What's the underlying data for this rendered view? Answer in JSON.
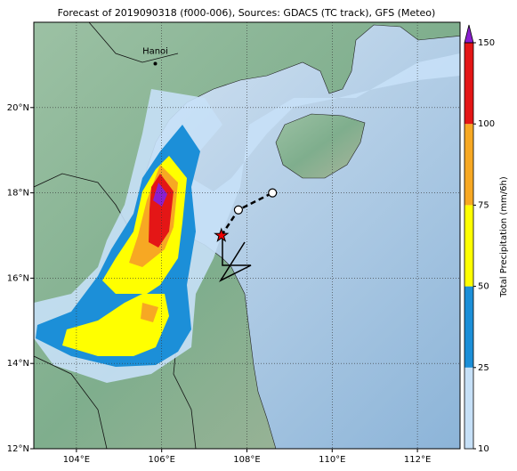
{
  "title": "Forecast of 2019090318 (f000-006), Sources: GDACS (TC track), GFS (Meteo)",
  "map": {
    "xlim": [
      103,
      113
    ],
    "ylim": [
      12,
      22
    ],
    "xticks": [
      {
        "value": 104,
        "label": "104°E"
      },
      {
        "value": 106,
        "label": "106°E"
      },
      {
        "value": 108,
        "label": "108°E"
      },
      {
        "value": 110,
        "label": "110°E"
      },
      {
        "value": 112,
        "label": "112°E"
      }
    ],
    "yticks": [
      {
        "value": 12,
        "label": "12°N"
      },
      {
        "value": 14,
        "label": "14°N"
      },
      {
        "value": 16,
        "label": "16°N"
      },
      {
        "value": 18,
        "label": "18°N"
      },
      {
        "value": 20,
        "label": "20°N"
      }
    ],
    "grid": true,
    "places": [
      {
        "name": "Hanoi",
        "lon": 105.85,
        "lat": 21.03
      }
    ],
    "track": {
      "lon": [
        107.4,
        107.8,
        108.6
      ],
      "lat": [
        17.0,
        17.6,
        18.0
      ]
    }
  },
  "colorbar": {
    "label": "Total Precipitation (mm/6h)",
    "ticks": [
      10,
      25,
      50,
      75,
      100,
      150
    ],
    "colors": [
      "#c6e0f7",
      "#1c8fd8",
      "#ffff00",
      "#f7a823",
      "#e41616"
    ],
    "extend_color": "#8b1fd0"
  }
}
